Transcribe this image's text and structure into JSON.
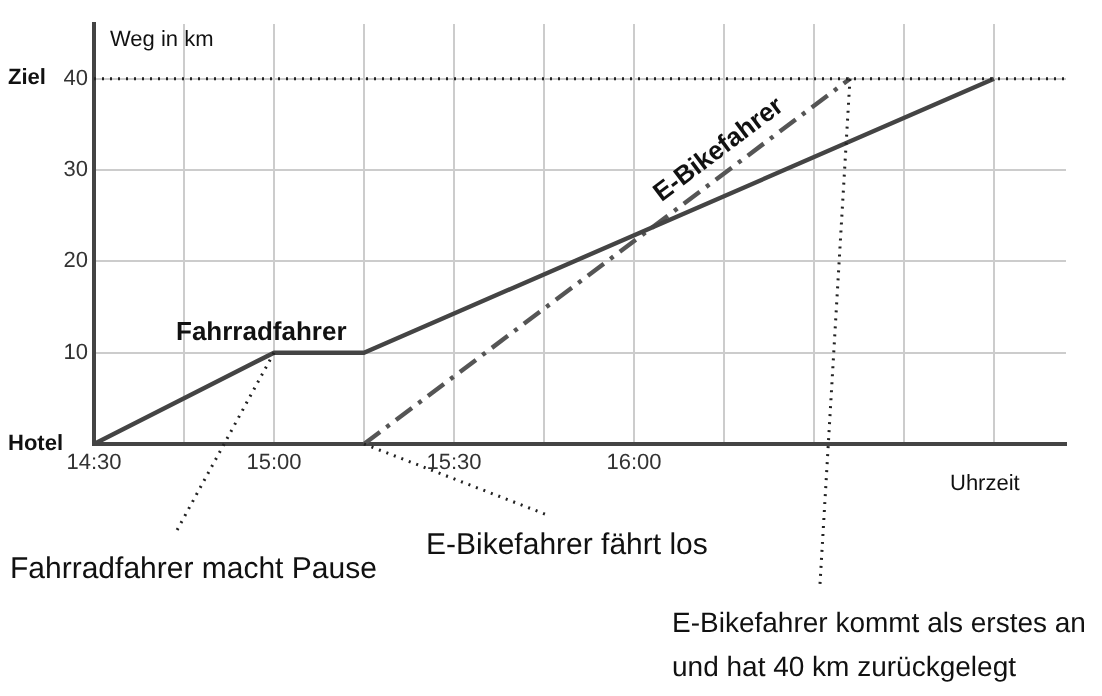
{
  "chart_data": {
    "type": "line",
    "xlabel": "Uhrzeit",
    "ylabel": "Weg in km",
    "series": [
      {
        "name": "Fahrradfahrer",
        "color": "#444444",
        "x": [
          14.5,
          15,
          15.25,
          17
        ],
        "values": [
          0,
          10,
          10,
          40
        ],
        "line_style": "solid"
      },
      {
        "name": "E-Bikefahrer",
        "color": "#555555",
        "x": [
          15.25,
          16.6
        ],
        "values": [
          0,
          40
        ],
        "line_style": "dashed"
      }
    ],
    "xlim": [
      14.5,
      17.2
    ],
    "xticks": [
      {
        "value": 14.5,
        "label": "14:30"
      },
      {
        "value": 14.75,
        "label": null
      },
      {
        "value": 15,
        "label": "15:00"
      },
      {
        "value": 15.25,
        "label": null
      },
      {
        "value": 15.5,
        "label": "15:30"
      },
      {
        "value": 15.75,
        "label": null
      },
      {
        "value": 16,
        "label": "16:00"
      },
      {
        "value": 16.25,
        "label": null
      },
      {
        "value": 16.5,
        "label": null
      },
      {
        "value": 16.75,
        "label": null
      },
      {
        "value": 17,
        "label": null
      }
    ],
    "ylim": [
      0,
      46
    ],
    "yticks": [
      {
        "value": 0,
        "label": null
      },
      10,
      20,
      30,
      40
    ],
    "ref_lines": [
      {
        "axis": "y",
        "value": 40,
        "line_style": "dotted",
        "color": "#222222"
      }
    ],
    "annotations": [
      "Ziel",
      "Hotel",
      {
        "text": "Fahrradfahrer macht Pause",
        "x": 15,
        "y": 10
      },
      {
        "text": "E-Bikefahrer fährt los",
        "x": 15.25,
        "y": 0
      },
      {
        "text": "E-Bikefahrer kommt als erstes an und hat 40 km zurückgelegt",
        "x": 16.6,
        "y": 40
      }
    ],
    "grid": true,
    "legend": false,
    "marker": "none"
  }
}
